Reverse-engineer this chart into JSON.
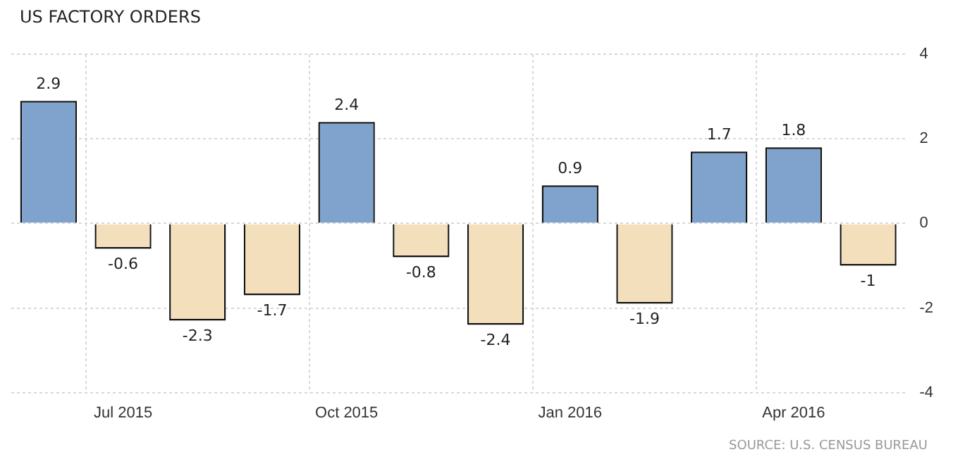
{
  "chart_data": {
    "type": "bar",
    "title": "US FACTORY ORDERS",
    "categories": [
      null,
      "Jul 2015",
      null,
      null,
      "Oct 2015",
      null,
      null,
      "Jan 2016",
      null,
      null,
      "Apr 2016",
      null
    ],
    "values": [
      2.9,
      -0.6,
      -2.3,
      -1.7,
      2.4,
      -0.8,
      -2.4,
      0.9,
      -1.9,
      1.7,
      1.8,
      -1
    ],
    "colors": [
      "#7fa3cc",
      "#f3dfbb",
      "#f3dfbb",
      "#f3dfbb",
      "#7fa3cc",
      "#f3dfbb",
      "#f3dfbb",
      "#7fa3cc",
      "#f3dfbb",
      "#7fa3cc",
      "#7fa3cc",
      "#f3dfbb"
    ],
    "ylim": [
      -4,
      4
    ],
    "yticks": [
      -4,
      -2,
      0,
      2,
      4
    ],
    "grid": true,
    "legend": false,
    "data_labels": true,
    "annotations": [
      "SOURCE: U.S. CENSUS BUREAU"
    ]
  }
}
